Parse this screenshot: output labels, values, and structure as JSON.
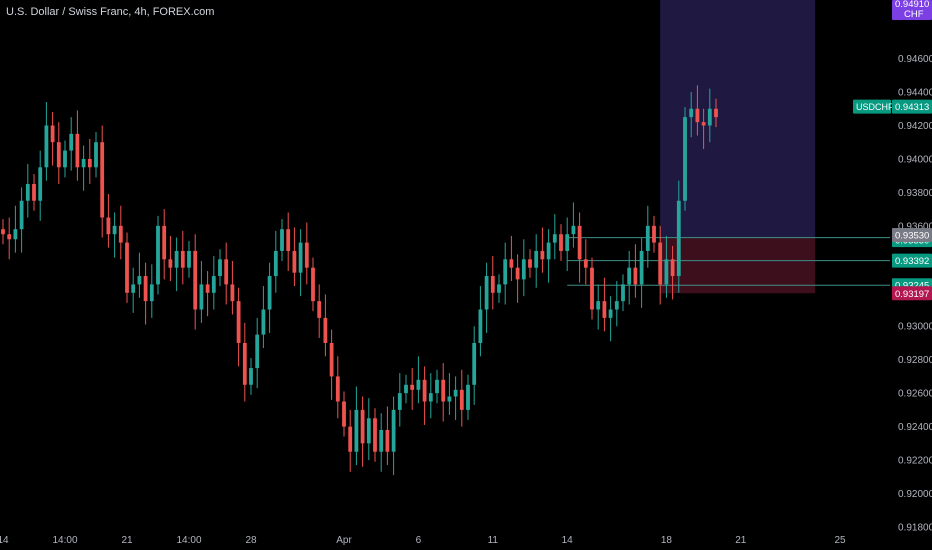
{
  "header": {
    "title": "U.S. Dollar / Swiss Franc, 4h, FOREX.com"
  },
  "colors": {
    "background": "#000000",
    "bull": "#26a69a",
    "bear": "#ef5350",
    "target_zone": "#1f1840",
    "stop_zone": "#3d0e1c",
    "axis_text": "#b2b5be",
    "top_badge": "#7b3fe4",
    "stop_badge": "#b2184f"
  },
  "chart_data": {
    "type": "candlestick",
    "symbol_label": "USDCHF",
    "top_badge_value": "0.94910",
    "top_badge_unit": "CHF",
    "last_price": 0.94313,
    "ylim": [
      0.918,
      0.9495
    ],
    "y_ticks": [
      0.946,
      0.944,
      0.942,
      0.94,
      0.938,
      0.936,
      0.934,
      0.932,
      0.93,
      0.928,
      0.926,
      0.924,
      0.922,
      0.92,
      0.918
    ],
    "x_ticks": [
      {
        "label": "14",
        "bar": 0
      },
      {
        "label": "14:00",
        "bar": 10
      },
      {
        "label": "21",
        "bar": 20
      },
      {
        "label": "14:00",
        "bar": 30
      },
      {
        "label": "28",
        "bar": 40
      },
      {
        "label": "Apr",
        "bar": 55
      },
      {
        "label": "6",
        "bar": 67
      },
      {
        "label": "11",
        "bar": 79
      },
      {
        "label": "14",
        "bar": 91
      },
      {
        "label": "18",
        "bar": 107
      },
      {
        "label": "21",
        "bar": 119
      },
      {
        "label": "25",
        "bar": 135
      }
    ],
    "closes": [
      0.9355,
      0.9352,
      0.9358,
      0.9375,
      0.9385,
      0.9375,
      0.9395,
      0.942,
      0.941,
      0.9395,
      0.9405,
      0.9415,
      0.9395,
      0.94,
      0.9395,
      0.941,
      0.9365,
      0.9355,
      0.936,
      0.935,
      0.932,
      0.9325,
      0.933,
      0.9315,
      0.9325,
      0.936,
      0.934,
      0.9335,
      0.9345,
      0.9335,
      0.9345,
      0.931,
      0.9325,
      0.932,
      0.933,
      0.934,
      0.9325,
      0.9315,
      0.929,
      0.9265,
      0.9275,
      0.9295,
      0.931,
      0.933,
      0.9345,
      0.9358,
      0.9345,
      0.9332,
      0.935,
      0.9335,
      0.9315,
      0.9305,
      0.929,
      0.927,
      0.9255,
      0.924,
      0.9225,
      0.925,
      0.923,
      0.9245,
      0.9225,
      0.9238,
      0.9225,
      0.925,
      0.926,
      0.9265,
      0.9262,
      0.9268,
      0.9255,
      0.926,
      0.9268,
      0.9255,
      0.9258,
      0.9262,
      0.925,
      0.9265,
      0.929,
      0.931,
      0.933,
      0.932,
      0.9325,
      0.934,
      0.9335,
      0.9328,
      0.934,
      0.9335,
      0.9345,
      0.934,
      0.935,
      0.9355,
      0.9345,
      0.9355,
      0.936,
      0.934,
      0.9335,
      0.931,
      0.9315,
      0.9305,
      0.931,
      0.9315,
      0.9325,
      0.9335,
      0.9325,
      0.9345,
      0.936,
      0.935,
      0.9325,
      0.934,
      0.933,
      0.9375,
      0.9425,
      0.943,
      0.9422,
      0.942,
      0.943,
      0.9425
    ],
    "levels": [
      {
        "name": "upper",
        "value": 0.9353
      },
      {
        "name": "entry",
        "value": 0.9353
      },
      {
        "name": "lower",
        "value": 0.93392
      },
      {
        "name": "stop",
        "value": 0.93245
      },
      {
        "name": "stop-zone-bottom",
        "value": 0.93197
      }
    ],
    "price_labels": [
      {
        "id": "lbl-upper",
        "text": "0.93530",
        "value": 0.9353,
        "color": "#089981"
      },
      {
        "id": "lbl-entry",
        "text": "0.93530",
        "value": 0.9353,
        "color": "#787b86"
      },
      {
        "id": "lbl-lower",
        "text": "0.93392",
        "value": 0.93392,
        "color": "#089981"
      },
      {
        "id": "lbl-stop",
        "text": "0.93245",
        "value": 0.93245,
        "color": "#089981"
      },
      {
        "id": "lbl-stop-bottom",
        "text": "0.93197",
        "value": 0.93197,
        "color": "#b2184f"
      }
    ],
    "last_price_label": "0.94313",
    "target_zone": {
      "from_bar": 106,
      "to_bar": 131,
      "top": 0.9495,
      "bottom": 0.9353
    },
    "stop_zone": {
      "from_bar": 106,
      "to_bar": 131,
      "top": 0.9353,
      "bottom": 0.93197
    }
  }
}
